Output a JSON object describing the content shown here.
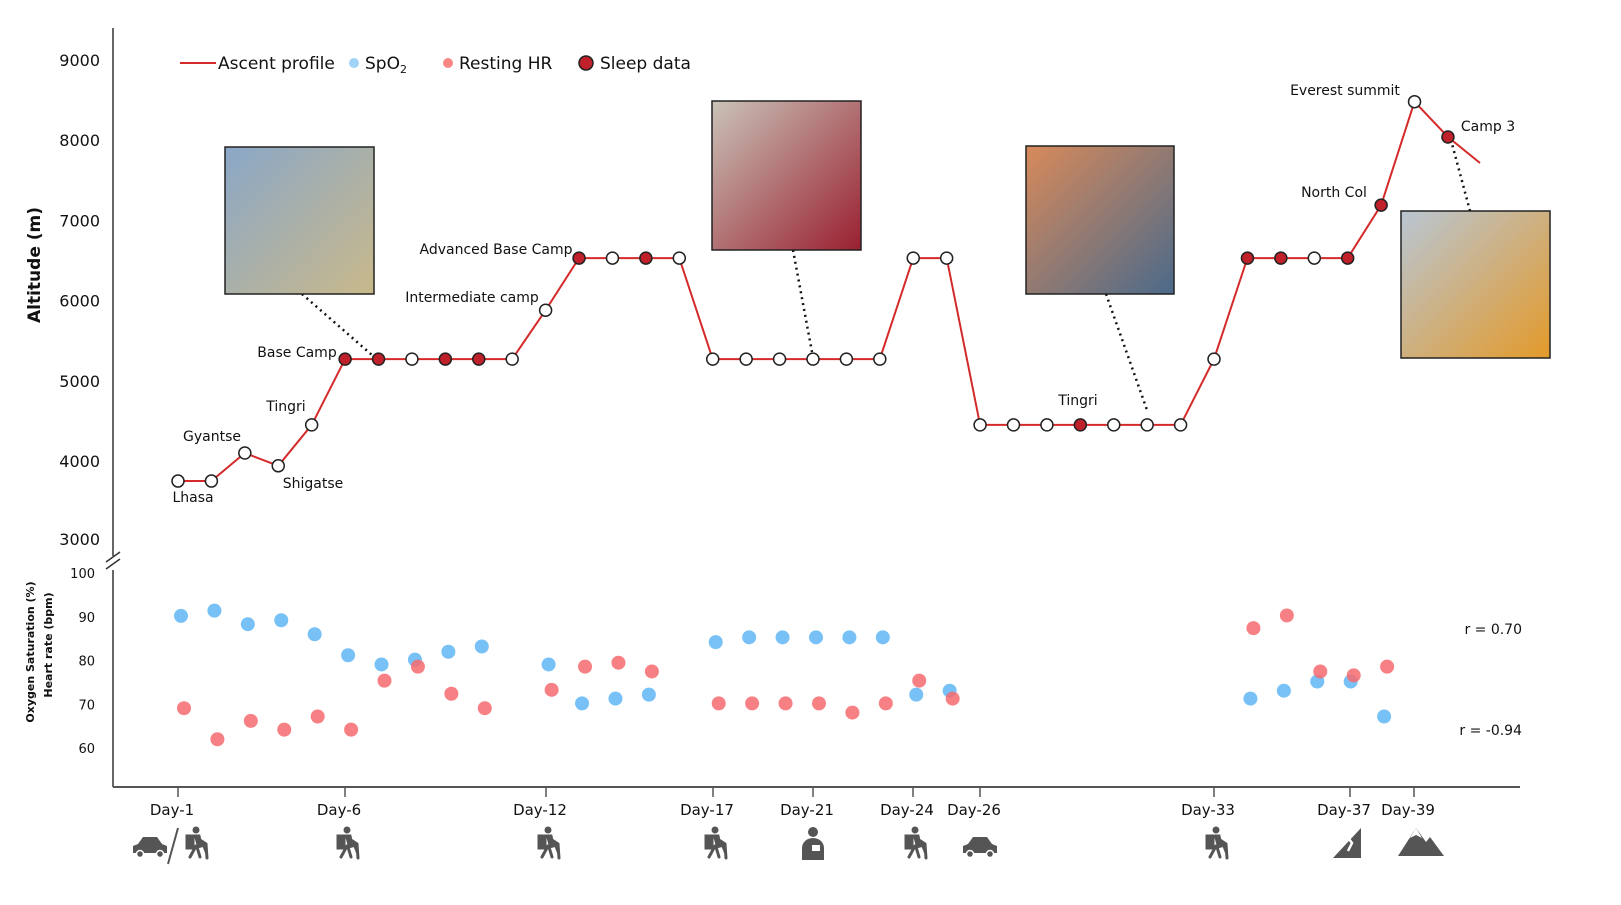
{
  "chart_data": {
    "type": "line",
    "title": "",
    "legend": {
      "position": "top-left",
      "entries": [
        {
          "name": "Ascent profile",
          "color": "#d42a2a"
        },
        {
          "name": "SpO",
          "subscript": "2",
          "color": "#9fd3f7"
        },
        {
          "name": "Resting HR",
          "color": "#f98585"
        },
        {
          "name": "Sleep data",
          "color": "#c0202a"
        }
      ]
    },
    "top_panel": {
      "ylabel": "Altitude (m)",
      "ylim": [
        3000,
        9000
      ],
      "yticks": [
        "3000",
        "4000",
        "5000",
        "6000",
        "7000",
        "8000",
        "9000"
      ],
      "altitude": [
        3750,
        3750,
        4100,
        3940,
        4450,
        5270,
        5270,
        5270,
        5270,
        5270,
        5270,
        5880,
        6530,
        6530,
        6530,
        6530,
        5270,
        5270,
        5270,
        5270,
        5270,
        5270,
        6530,
        6530,
        4450,
        4450,
        4450,
        4450,
        4450,
        4450,
        4450,
        5270,
        6530,
        6530,
        6530,
        6530,
        7190,
        8480,
        8040
      ],
      "sleep_data": [
        0,
        0,
        0,
        0,
        0,
        1,
        1,
        0,
        1,
        1,
        0,
        0,
        1,
        0,
        1,
        0,
        0,
        0,
        0,
        0,
        0,
        0,
        0,
        0,
        0,
        0,
        0,
        1,
        0,
        0,
        0,
        0,
        1,
        1,
        0,
        1,
        1,
        0,
        1
      ],
      "annotations": [
        {
          "text": "Lhasa",
          "index": 0
        },
        {
          "text": "Gyantse",
          "index": 2
        },
        {
          "text": "Shigatse",
          "index": 3
        },
        {
          "text": "Tingri",
          "index": 4
        },
        {
          "text": "Base Camp",
          "index": 5
        },
        {
          "text": "Intermediate camp",
          "index": 11
        },
        {
          "text": "Advanced Base Camp",
          "index": 12
        },
        {
          "text": "Tingri",
          "index": 27
        },
        {
          "text": "North Col",
          "index": 36
        },
        {
          "text": "Everest summit",
          "index": 37
        },
        {
          "text": "Camp 3",
          "index": 38
        }
      ],
      "photos": [
        "base-camp-flag-photo",
        "blistered-finger-photo",
        "frostbitten-finger-photo",
        "summit-selfie-photo"
      ]
    },
    "bottom_panel": {
      "ylabel_1": "Oxygen Saturation (%)",
      "ylabel_2": "Heart rate (bpm)",
      "ylim": [
        50,
        100
      ],
      "yticks": [
        "60",
        "70",
        "80",
        "90",
        "100"
      ],
      "spo2": {
        "index": [
          0,
          1,
          2,
          3,
          4,
          5,
          6,
          7,
          8,
          9,
          11,
          12,
          13,
          14,
          16,
          17,
          18,
          19,
          20,
          21,
          22,
          23,
          32,
          33,
          34,
          35,
          36
        ],
        "values": [
          90.2,
          91.4,
          88.3,
          89.2,
          86,
          81.2,
          79.1,
          80.2,
          82,
          83.2,
          79.1,
          70.2,
          71.3,
          72.2,
          84.2,
          85.3,
          85.3,
          85.3,
          85.3,
          85.3,
          72.2,
          73.1,
          71.3,
          73.1,
          75.2,
          75.2,
          67.2
        ]
      },
      "resting_hr": {
        "index": [
          0,
          1,
          2,
          3,
          4,
          5,
          6,
          7,
          8,
          9,
          11,
          12,
          13,
          14,
          16,
          17,
          18,
          19,
          20,
          21,
          22,
          23,
          32,
          33,
          34,
          35,
          36
        ],
        "values": [
          69.1,
          62,
          66.2,
          64.2,
          67.2,
          64.2,
          75.4,
          78.6,
          72.4,
          69.1,
          73.3,
          78.6,
          79.5,
          77.5,
          70.2,
          70.2,
          70.2,
          70.2,
          68.1,
          70.2,
          75.4,
          71.3,
          87.4,
          90.3,
          77.5,
          76.6,
          78.6
        ]
      },
      "correlations": [
        "r =  0.70",
        "r = -0.94"
      ]
    },
    "xticks": [
      {
        "label": "Day-1",
        "index": 0,
        "icons": [
          "car-icon",
          "hiker-icon"
        ]
      },
      {
        "label": "Day-6",
        "index": 5,
        "icons": [
          "hiker-icon"
        ]
      },
      {
        "label": "Day-12",
        "index": 11,
        "icons": [
          "hiker-icon"
        ]
      },
      {
        "label": "Day-17",
        "index": 16,
        "icons": [
          "hiker-icon"
        ]
      },
      {
        "label": "Day-21",
        "index": 19,
        "icons": [
          "medic-icon"
        ]
      },
      {
        "label": "Day-24",
        "index": 22,
        "icons": [
          "hiker-icon"
        ]
      },
      {
        "label": "Day-26",
        "index": 24,
        "icons": [
          "car-icon"
        ]
      },
      {
        "label": "Day-33",
        "index": 31,
        "icons": [
          "hiker-icon"
        ]
      },
      {
        "label": "Day-37",
        "index": 35,
        "icons": [
          "climber-icon"
        ]
      },
      {
        "label": "Day-39",
        "index": 37,
        "icons": [
          "mountain-icon"
        ]
      }
    ]
  }
}
